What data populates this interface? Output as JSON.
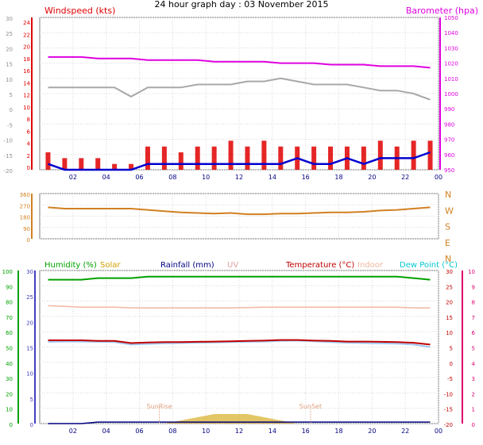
{
  "title": "24 hour graph day : 03 November 2015",
  "colors": {
    "wind": "#e00000",
    "wind_line": "#0000d0",
    "baro": "#e000e0",
    "gray_series": "#a8a8a8",
    "direction": "#d08020",
    "humidity": "#00a000",
    "solar": "#d0a000",
    "rainfall": "#000080",
    "uv": "#e0a0a0",
    "temperature": "#c00000",
    "indoor": "#f0b8a0",
    "dew_point": "#00c8d0",
    "rain_axis": "#4040c0",
    "temp_axis": "#e00070",
    "sunmark": "#e0a080"
  },
  "x_ticks": [
    "02",
    "04",
    "06",
    "08",
    "10",
    "12",
    "14",
    "16",
    "18",
    "20",
    "22",
    "00"
  ],
  "panel1": {
    "left_label": "Windspeed (kts)",
    "right_label": "Barometer (hpa)",
    "left_ticks_outer": [
      "30",
      "25",
      "20",
      "15",
      "10",
      "5",
      "0",
      "-5",
      "-10",
      "-15",
      "-20"
    ],
    "left_ticks_inner": [
      "24",
      "22",
      "20",
      "18",
      "16",
      "14",
      "12",
      "10",
      "8",
      "6",
      "4",
      "2",
      "0"
    ],
    "right_ticks": [
      "1050",
      "1040",
      "1030",
      "1020",
      "1010",
      "1000",
      "990",
      "980",
      "970",
      "960",
      "950"
    ]
  },
  "panel2": {
    "left_ticks": [
      "360",
      "270",
      "180",
      "90",
      "0"
    ],
    "right_labels": [
      "N",
      "W",
      "S",
      "E",
      "N"
    ]
  },
  "panel3": {
    "legend": {
      "humidity": "Humidity (%)",
      "solar": "Solar",
      "rainfall": "Rainfall (mm)",
      "uv": "UV",
      "temperature": "Temperature (°C)",
      "indoor": "Indoor",
      "dew_point": "Dew Point (°C)"
    },
    "sunrise_label": "SunRise",
    "sunset_label": "SunSet",
    "humidity_ticks": [
      "100",
      "90",
      "80",
      "70",
      "60",
      "50",
      "40",
      "30",
      "20",
      "10",
      "0"
    ],
    "rain_ticks": [
      "30",
      "25",
      "20",
      "15",
      "10",
      "5",
      "0"
    ],
    "temp_ticks_inner": [
      "30",
      "25",
      "20",
      "15",
      "10",
      "5",
      "0",
      "-5",
      "-10",
      "-15",
      "-20"
    ],
    "uv_ticks": [
      "10",
      "9",
      "8",
      "7",
      "6",
      "5",
      "4",
      "3",
      "2",
      "1",
      "0"
    ]
  },
  "chart_data": [
    {
      "type": "line",
      "title": "24 hour graph day : 03 November 2015",
      "x": [
        1,
        2,
        3,
        4,
        5,
        6,
        7,
        8,
        9,
        10,
        11,
        12,
        13,
        14,
        15,
        16,
        17,
        18,
        19,
        20,
        21,
        22,
        23,
        24
      ],
      "series": [
        {
          "name": "Barometer (hpa)",
          "axis": "right",
          "values": [
            1024,
            1024,
            1024,
            1023,
            1023,
            1023,
            1022,
            1022,
            1022,
            1022,
            1021,
            1021,
            1021,
            1021,
            1020,
            1020,
            1020,
            1019,
            1019,
            1019,
            1018,
            1018,
            1018,
            1017
          ]
        },
        {
          "name": "Windspeed (kts)",
          "axis": "left",
          "values": [
            3,
            2,
            2,
            2,
            1,
            1,
            4,
            4,
            3,
            4,
            4,
            5,
            4,
            5,
            4,
            4,
            4,
            4,
            4,
            4,
            5,
            4,
            5,
            5
          ]
        },
        {
          "values": [
            1,
            0,
            0,
            0,
            0,
            0,
            1,
            1,
            1,
            1,
            1,
            1,
            1,
            1,
            1,
            2,
            1,
            1,
            2,
            1,
            2,
            2,
            2,
            3
          ]
        },
        {
          "values": [
            13.5,
            13.5,
            13.5,
            13.5,
            13.5,
            12,
            13.5,
            13.5,
            13.5,
            14,
            14,
            14,
            14.5,
            14.5,
            15,
            14.5,
            14,
            14,
            14,
            13.5,
            13,
            13,
            12.5,
            11.5
          ]
        }
      ],
      "ylim_left": [
        0,
        25
      ],
      "ylim_right": [
        950,
        1050
      ]
    },
    {
      "type": "line",
      "x": [
        1,
        2,
        3,
        4,
        5,
        6,
        7,
        8,
        9,
        10,
        11,
        12,
        13,
        14,
        15,
        16,
        17,
        18,
        19,
        20,
        21,
        22,
        23,
        24
      ],
      "series": [
        {
          "values": [
            250,
            240,
            240,
            240,
            240,
            240,
            230,
            220,
            210,
            205,
            200,
            205,
            195,
            195,
            200,
            200,
            205,
            210,
            210,
            215,
            225,
            230,
            240,
            250
          ]
        }
      ],
      "ylim": [
        0,
        360
      ]
    },
    {
      "type": "line",
      "x": [
        1,
        2,
        3,
        4,
        5,
        6,
        7,
        8,
        9,
        10,
        11,
        12,
        13,
        14,
        15,
        16,
        17,
        18,
        19,
        20,
        21,
        22,
        23,
        24
      ],
      "series": [
        {
          "name": "Humidity (%)",
          "axis": "humidity",
          "values": [
            94,
            94,
            94,
            95,
            95,
            95,
            96,
            96,
            96,
            96,
            96,
            96,
            96,
            96,
            96,
            96,
            96,
            96,
            96,
            96,
            96,
            96,
            95,
            94
          ]
        },
        {
          "name": "Temperature (°C)",
          "axis": "temp",
          "values": [
            7.2,
            7.2,
            7.2,
            7,
            7,
            6.3,
            6.5,
            6.6,
            6.6,
            6.7,
            6.8,
            6.9,
            7,
            7.1,
            7.3,
            7.3,
            7.1,
            7,
            6.8,
            6.8,
            6.7,
            6.6,
            6.4,
            5.8
          ]
        },
        {
          "name": "Dew Point (°C)",
          "axis": "temp",
          "values": [
            6.7,
            6.8,
            6.8,
            6.7,
            6.6,
            5.8,
            6,
            6.2,
            6.3,
            6.4,
            6.5,
            6.6,
            6.7,
            6.8,
            7,
            7.1,
            6.9,
            6.6,
            6.4,
            6.3,
            6.2,
            6.1,
            5.8,
            5
          ]
        },
        {
          "name": "Indoor",
          "axis": "temp",
          "values": [
            18.5,
            18.3,
            18,
            18,
            18,
            17.8,
            17.8,
            17.8,
            17.8,
            17.8,
            17.8,
            17.8,
            17.9,
            18,
            18,
            18,
            18,
            18,
            18,
            18,
            18,
            18,
            17.8,
            17.8
          ]
        },
        {
          "name": "Rainfall (mm)",
          "axis": "rain",
          "values": [
            0,
            0,
            0,
            0.3,
            0.3,
            0.3,
            0.3,
            0.3,
            0.3,
            0.3,
            0.3,
            0.3,
            0.3,
            0.3,
            0.3,
            0.3,
            0.3,
            0.3,
            0.3,
            0.3,
            0.3,
            0.3,
            0.3,
            0.3
          ]
        },
        {
          "name": "Solar",
          "axis": "solar",
          "values": [
            0,
            0,
            0,
            0,
            0,
            0,
            0,
            0,
            1,
            2,
            3,
            3,
            3,
            2,
            1,
            0,
            0,
            0,
            0,
            0,
            0,
            0,
            0,
            0
          ]
        }
      ],
      "ylim_humidity": [
        0,
        100
      ],
      "ylim_temp": [
        -20,
        30
      ],
      "ylim_rain": [
        0,
        30
      ]
    }
  ]
}
